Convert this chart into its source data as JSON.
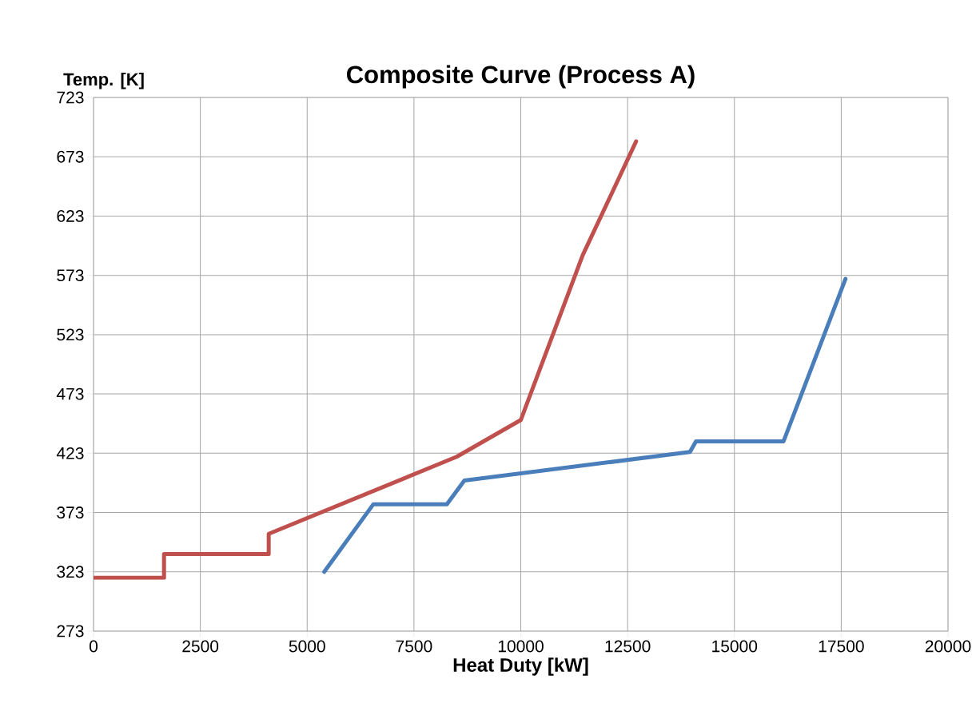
{
  "chart_data": {
    "type": "line",
    "title": "Composite Curve (Process A)",
    "xlabel": "Heat Duty [kW]",
    "ylabel": "Temp. [K]",
    "series": [
      {
        "color": "#c0504d",
        "x": [
          0,
          1650,
          1650,
          4100,
          4100,
          8500,
          10000,
          11450,
          12700
        ],
        "values": [
          318,
          318,
          338,
          338,
          355,
          420,
          451,
          590,
          686
        ]
      },
      {
        "color": "#4a7ebb",
        "x": [
          5400,
          6550,
          8270,
          8680,
          13960,
          14100,
          16150,
          17600
        ],
        "values": [
          323,
          380,
          380,
          400,
          424,
          433,
          433,
          570
        ]
      }
    ],
    "xlim": [
      0,
      20000
    ],
    "xticks": [
      0,
      2500,
      5000,
      7500,
      10000,
      12500,
      15000,
      17500,
      20000
    ],
    "ylim": [
      273,
      723
    ],
    "yticks": [
      273,
      323,
      373,
      423,
      473,
      523,
      573,
      623,
      673,
      723
    ],
    "grid": true,
    "marker": "none",
    "line_style": "solid"
  }
}
